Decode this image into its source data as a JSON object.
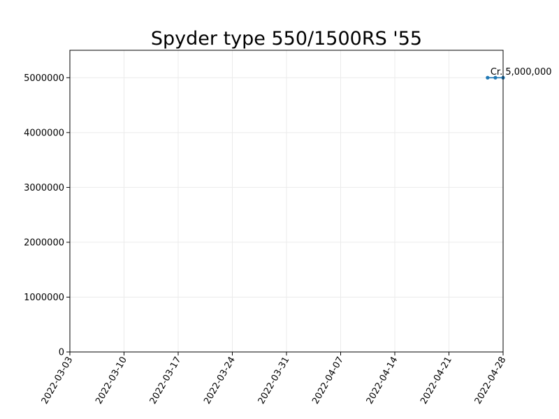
{
  "chart_data": {
    "type": "line",
    "title": "Spyder type 550/1500RS '55",
    "xlabel": "",
    "ylabel": "",
    "xlim": [
      "2022-03-03",
      "2022-04-28"
    ],
    "ylim": [
      0,
      5500000
    ],
    "x_ticks": [
      "2022-03-03",
      "2022-03-10",
      "2022-03-17",
      "2022-03-24",
      "2022-03-31",
      "2022-04-07",
      "2022-04-14",
      "2022-04-21",
      "2022-04-28"
    ],
    "y_ticks": [
      0,
      1000000,
      2000000,
      3000000,
      4000000,
      5000000
    ],
    "y_tick_labels": [
      "0",
      "1000000",
      "2000000",
      "3000000",
      "4000000",
      "5000000"
    ],
    "grid": true,
    "series": [
      {
        "color": "#1f77b4",
        "x": [
          "2022-04-26",
          "2022-04-27",
          "2022-04-28"
        ],
        "values": [
          5000000,
          5000000,
          5000000
        ]
      }
    ],
    "annotations": [
      {
        "text": "Cr. 5,000,000",
        "x": "2022-04-26",
        "y": 5000000
      }
    ]
  }
}
